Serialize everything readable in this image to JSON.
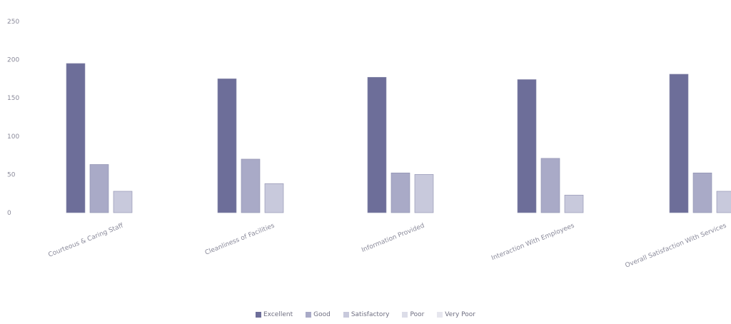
{
  "chart_data": {
    "type": "bar",
    "categories": [
      "Courteous & Caring Staff",
      "Cleanliness of Facilities",
      "Information Provided",
      "Interaction With Employees",
      "Overall Satisfaction With Services"
    ],
    "series": [
      {
        "name": "Excellent",
        "color": "#6d6e99",
        "values": [
          195,
          175,
          177,
          174,
          181
        ]
      },
      {
        "name": "Good",
        "color": "#a9aac7",
        "values": [
          63,
          70,
          52,
          71,
          52
        ]
      },
      {
        "name": "Satisfactory",
        "color": "#c8c9dc",
        "values": [
          28,
          38,
          50,
          23,
          28
        ]
      },
      {
        "name": "Poor",
        "color": "#dcdde8",
        "values": [
          0,
          0,
          0,
          0,
          0
        ]
      },
      {
        "name": "Very Poor",
        "color": "#e6e6ee",
        "values": [
          0,
          0,
          0,
          0,
          0
        ]
      }
    ],
    "ylim": [
      0,
      250
    ],
    "yticks": [
      "0",
      "50",
      "100",
      "150",
      "200",
      "250"
    ],
    "xlabel": "",
    "ylabel": "",
    "title": "",
    "grid": false,
    "legend_position": "bottom"
  }
}
